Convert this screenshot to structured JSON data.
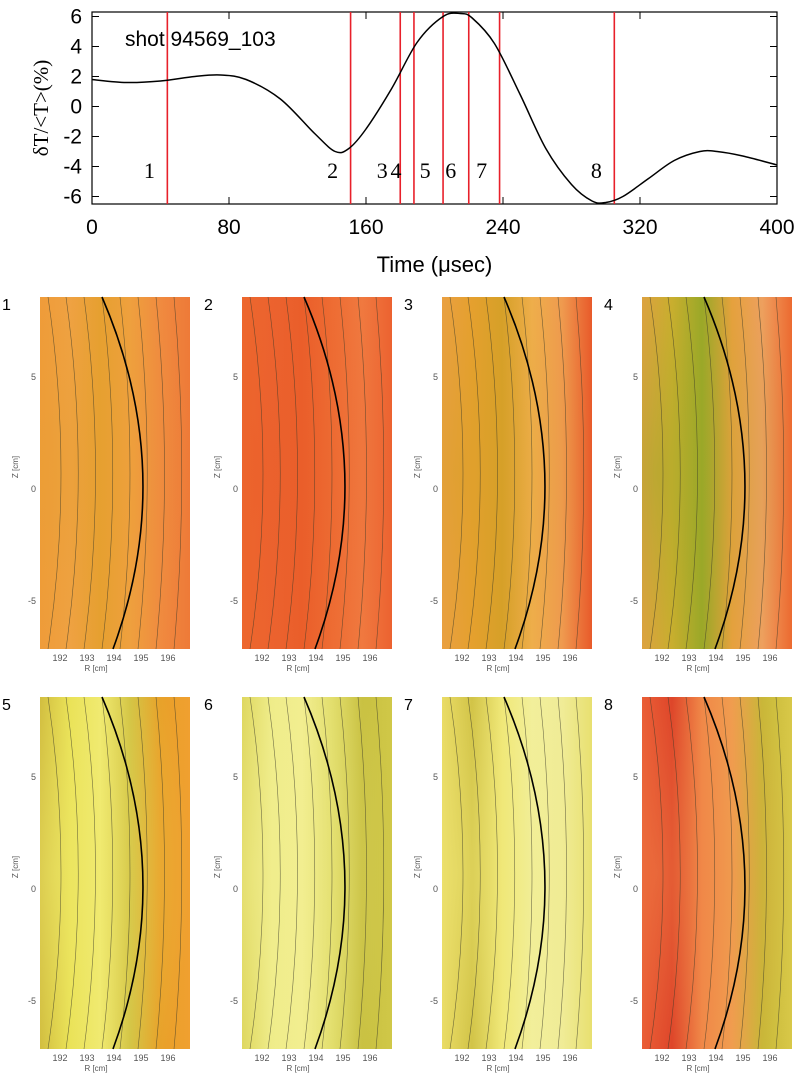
{
  "chart_data": [
    {
      "type": "line",
      "title": "shot 94569_103",
      "xlabel": "Time (μsec)",
      "ylabel": "δT/<T>(%)",
      "xlim": [
        0,
        400
      ],
      "ylim": [
        -6.5,
        6.3
      ],
      "x_ticks": [
        "0",
        "80",
        "160",
        "240",
        "320",
        "400"
      ],
      "y_ticks": [
        "6",
        "4",
        "2",
        "0",
        "-2",
        "-4",
        "-6"
      ],
      "series": [
        {
          "x": [
            0,
            20,
            40,
            60,
            75,
            90,
            110,
            130,
            142,
            150,
            160,
            175,
            190,
            205,
            215,
            222,
            235,
            250,
            265,
            280,
            292,
            300,
            310,
            325,
            340,
            355,
            365,
            380,
            400
          ],
          "y": [
            1.8,
            1.6,
            1.7,
            2.0,
            2.1,
            1.8,
            0.5,
            -1.8,
            -3.0,
            -2.8,
            -1.5,
            1.2,
            4.3,
            6.0,
            6.2,
            5.9,
            4.2,
            0.8,
            -2.8,
            -5.2,
            -6.3,
            -6.4,
            -6.0,
            -4.8,
            -3.6,
            -3.0,
            -3.0,
            -3.3,
            -3.9
          ]
        }
      ],
      "markers": [
        {
          "label": "1",
          "x": 44
        },
        {
          "label": "2",
          "x": 151
        },
        {
          "label": "3",
          "x": 180
        },
        {
          "label": "4",
          "x": 188
        },
        {
          "label": "5",
          "x": 205
        },
        {
          "label": "6",
          "x": 220
        },
        {
          "label": "7",
          "x": 238
        },
        {
          "label": "8",
          "x": 305
        }
      ],
      "marker_color": "#e8202a",
      "curve_color": "#000000"
    },
    {
      "type": "heatmap",
      "panels": [
        {
          "label": "1",
          "colors": [
            "#f29a3c",
            "#f2a248",
            "#e6a030",
            "#f0a040",
            "#f08a40",
            "#ee7a38"
          ]
        },
        {
          "label": "2",
          "colors": [
            "#ee6a2e",
            "#ec6430",
            "#ea5e2a",
            "#ee6e34",
            "#f07a40",
            "#ec6230"
          ]
        },
        {
          "label": "3",
          "colors": [
            "#f0a04a",
            "#eaa030",
            "#d6a028",
            "#f2b050",
            "#f09a50",
            "#e85a2a"
          ]
        },
        {
          "label": "4",
          "colors": [
            "#f2a048",
            "#d8b030",
            "#9aa828",
            "#f0a040",
            "#f0a060",
            "#ec6a30"
          ]
        },
        {
          "label": "5",
          "colors": [
            "#c8b030",
            "#e8e050",
            "#f0ea70",
            "#d0c040",
            "#e8a028",
            "#f0a030"
          ]
        },
        {
          "label": "6",
          "colors": [
            "#d8d050",
            "#eeec88",
            "#f2ee90",
            "#e0dc68",
            "#c8c040",
            "#d0c848"
          ]
        },
        {
          "label": "7",
          "colors": [
            "#e8d860",
            "#c8b838",
            "#f0e878",
            "#f2f0a0",
            "#f0ec98",
            "#e8e070"
          ]
        },
        {
          "label": "8",
          "colors": [
            "#e85030",
            "#d83020",
            "#f08848",
            "#f0a050",
            "#c8b838",
            "#d8c848"
          ]
        }
      ],
      "x_ticks": [
        "192",
        "193",
        "194",
        "195",
        "196"
      ],
      "y_ticks": [
        "5",
        "0",
        "-5"
      ],
      "xlabel": "R [cm]",
      "ylabel": "Z [cm]"
    }
  ]
}
